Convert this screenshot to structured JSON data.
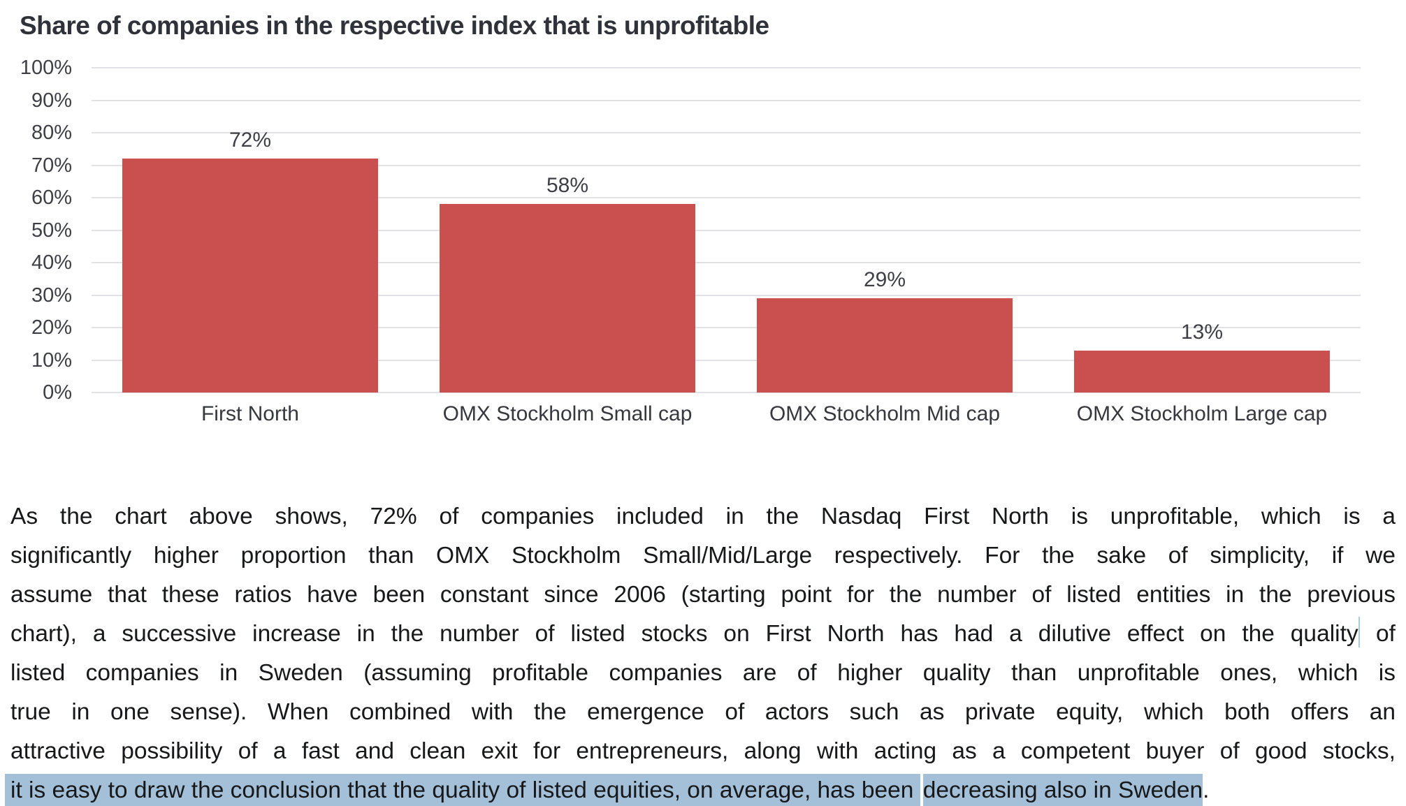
{
  "chart": {
    "title": "Share of companies in the respective index that is unprofitable"
  },
  "chart_data": {
    "type": "bar",
    "title": "Share of companies in the respective index that is unprofitable",
    "categories": [
      "First North",
      "OMX Stockholm Small cap",
      "OMX Stockholm Mid cap",
      "OMX Stockholm Large cap"
    ],
    "values": [
      72,
      58,
      29,
      13
    ],
    "value_labels": [
      "72%",
      "58%",
      "29%",
      "13%"
    ],
    "y_ticks": [
      "100%",
      "90%",
      "80%",
      "70%",
      "60%",
      "50%",
      "40%",
      "30%",
      "20%",
      "10%",
      "0%"
    ],
    "ylim": [
      0,
      100
    ],
    "grid": true,
    "legend": "none",
    "xlabel": "",
    "ylabel": "",
    "bar_color": "#c9504e"
  },
  "colors": {
    "bar": "#c9504e",
    "gridline": "#e1e1e6",
    "selection_highlight": "#a4c0d8",
    "caret": "#a9cbde",
    "title_text": "#2f3238",
    "body_text": "#17181a"
  },
  "paragraph": {
    "lines": [
      {
        "justify": true,
        "segments": [
          {
            "t": "As the chart above shows, 72% of companies included in the Nasdaq First North is unprofitable, which is a"
          }
        ]
      },
      {
        "justify": true,
        "segments": [
          {
            "t": "significantly higher proportion than OMX Stockholm Small/Mid/Large respectively. For the sake of simplicity, if we"
          }
        ]
      },
      {
        "justify": true,
        "segments": [
          {
            "t": "assume that these ratios have been constant since 2006 (starting point for the number of listed entities in the previous"
          }
        ]
      },
      {
        "justify": true,
        "segments": [
          {
            "t": "chart), a successive increase in the number of listed stocks on First North has had a dilutive effect on the quality"
          },
          {
            "caret": true
          },
          {
            "t": " of"
          }
        ]
      },
      {
        "justify": true,
        "segments": [
          {
            "t": "listed companies in Sweden (assuming profitable companies are of higher quality than unprofitable ones, which is"
          }
        ]
      },
      {
        "justify": true,
        "segments": [
          {
            "t": "true in one sense). When combined with the emergence of actors such as private equity, which both offers an"
          }
        ]
      },
      {
        "justify": true,
        "segments": [
          {
            "t": "attractive possibility of a fast and clean exit for entrepreneurs, along with acting as a competent buyer of good stocks,"
          }
        ]
      },
      {
        "justify": false,
        "segments": [
          {
            "t": "it is easy to draw the conclusion that the quality of listed equities, on average, has been ",
            "hl": true,
            "lead": true
          },
          {
            "gap": true
          },
          {
            "t": "decreasing also in Sweden",
            "hl": true
          },
          {
            "t": "."
          }
        ]
      }
    ]
  }
}
